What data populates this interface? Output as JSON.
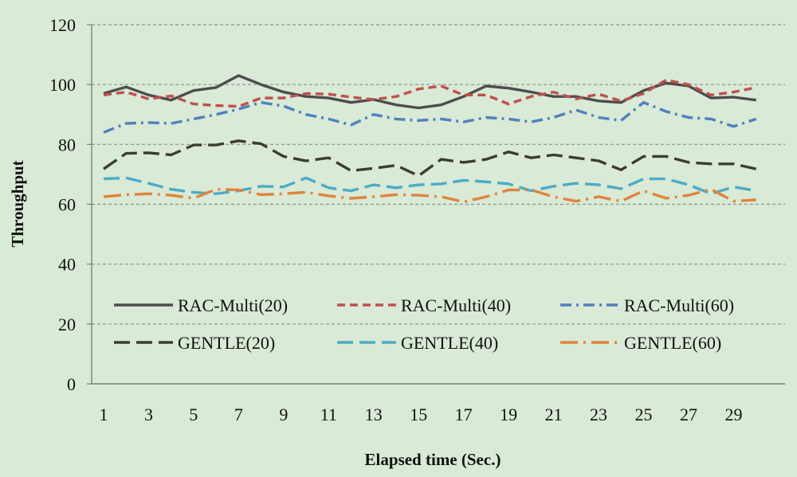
{
  "chart_data": {
    "type": "line",
    "title": "",
    "xlabel": "Elapsed time (Sec.)",
    "ylabel": "Throughput",
    "ylim": [
      0,
      120
    ],
    "yticks": [
      0,
      20,
      40,
      60,
      80,
      100,
      120
    ],
    "x": [
      1,
      2,
      3,
      4,
      5,
      6,
      7,
      8,
      9,
      10,
      11,
      12,
      13,
      14,
      15,
      16,
      17,
      18,
      19,
      20,
      21,
      22,
      23,
      24,
      25,
      26,
      27,
      28,
      29,
      30
    ],
    "xtick_labels": [
      "1",
      "3",
      "5",
      "7",
      "9",
      "11",
      "13",
      "15",
      "17",
      "19",
      "21",
      "23",
      "25",
      "27",
      "29"
    ],
    "grid": "horizontal dashed",
    "legend_position": "lower-center inside plot",
    "series": [
      {
        "name": "RAC-Multi(20)",
        "color": "#4d4d4d",
        "dash": "solid",
        "values": [
          97,
          99.2,
          96.5,
          94.8,
          98,
          99,
          103,
          100,
          97.5,
          96,
          95.5,
          94,
          95,
          93.2,
          92.2,
          93.2,
          96,
          99.5,
          98.8,
          97.5,
          96,
          96,
          94.5,
          94,
          98,
          100.5,
          99.5,
          95.5,
          95.8,
          94.8
        ]
      },
      {
        "name": "RAC-Multi(40)",
        "color": "#c0504d",
        "dash": "dash",
        "values": [
          96.5,
          97.5,
          95.2,
          96.2,
          93.5,
          93,
          92.7,
          95.5,
          95.5,
          97,
          96.8,
          95.8,
          95,
          96,
          98.5,
          99.5,
          96.5,
          96.5,
          93.5,
          96,
          97.5,
          95.2,
          96.8,
          94.5,
          97,
          101.5,
          100,
          96.5,
          97.5,
          99
        ]
      },
      {
        "name": "RAC-Multi(60)",
        "color": "#4f81bd",
        "dash": "dashdot",
        "values": [
          84,
          87,
          87.3,
          87,
          88.5,
          90,
          91.8,
          94,
          92.8,
          90,
          88.5,
          86.5,
          90,
          88.5,
          88,
          88.5,
          87.5,
          89,
          88.5,
          87.5,
          89,
          91.5,
          89,
          88,
          94,
          91,
          89,
          88.5,
          86,
          88.5
        ]
      },
      {
        "name": "GENTLE(20)",
        "color": "#3d3d2b",
        "dash": "longdash",
        "values": [
          71.8,
          77,
          77.2,
          76.5,
          79.8,
          79.8,
          81.2,
          80.2,
          76,
          74.5,
          75.5,
          71.2,
          72,
          73,
          69.5,
          75,
          74,
          75,
          77.5,
          75.5,
          76.5,
          75.5,
          74.5,
          71.5,
          76,
          76,
          74,
          73.5,
          73.5,
          71.8
        ]
      },
      {
        "name": "GENTLE(40)",
        "color": "#4bacc6",
        "dash": "longdash",
        "values": [
          68.5,
          68.8,
          67,
          65,
          64,
          63.5,
          64.5,
          66,
          65.8,
          68.8,
          65.5,
          64.5,
          66.5,
          65.5,
          66.5,
          66.8,
          68,
          67.5,
          66.8,
          64.5,
          66,
          67,
          66.5,
          65.2,
          68.5,
          68.5,
          66.5,
          63.5,
          65.8,
          64.5
        ]
      },
      {
        "name": "GENTLE(60)",
        "color": "#e0843c",
        "dash": "longdashdot",
        "values": [
          62.5,
          63.2,
          63.5,
          63,
          62,
          65,
          64.8,
          63.2,
          63.5,
          64,
          62.8,
          62,
          62.5,
          63.2,
          63,
          62.5,
          60.8,
          62.5,
          64.8,
          64.8,
          62.5,
          61,
          62.5,
          61,
          64.5,
          62,
          63,
          65,
          61,
          61.5
        ]
      }
    ]
  }
}
